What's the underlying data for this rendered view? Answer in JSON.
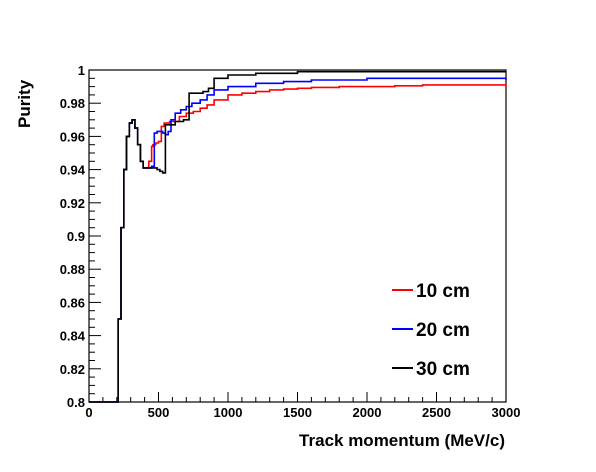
{
  "chart_data": {
    "type": "line",
    "xlabel": "Track momentum (MeV/c)",
    "ylabel": "Purity",
    "xlim": [
      0,
      3000
    ],
    "ylim": [
      0.8,
      1.0
    ],
    "xticks": [
      0,
      500,
      1000,
      1500,
      2000,
      2500,
      3000
    ],
    "xtick_labels": [
      "0",
      "500",
      "1000",
      "1500",
      "2000",
      "2500",
      "3000"
    ],
    "yticks": [
      0.8,
      0.82,
      0.84,
      0.86,
      0.88,
      0.9,
      0.92,
      0.94,
      0.96,
      0.98,
      1.0
    ],
    "ytick_labels": [
      "0.8",
      "0.82",
      "0.84",
      "0.86",
      "0.88",
      "0.9",
      "0.92",
      "0.94",
      "0.96",
      "0.98",
      "1"
    ],
    "grid": false,
    "legend_position": "bottom-right",
    "series": [
      {
        "name": "10 cm",
        "color": "#ff0000",
        "x": [
          0,
          200,
          210,
          230,
          250,
          270,
          290,
          310,
          330,
          350,
          370,
          390,
          410,
          430,
          450,
          460,
          480,
          500,
          520,
          540,
          560,
          580,
          600,
          650,
          700,
          750,
          800,
          850,
          900,
          1000,
          1100,
          1200,
          1300,
          1400,
          1500,
          1600,
          1800,
          2000,
          2200,
          2400,
          2600,
          2800,
          3000
        ],
        "y": [
          0.8,
          0.8,
          0.85,
          0.905,
          0.94,
          0.96,
          0.968,
          0.97,
          0.965,
          0.955,
          0.945,
          0.941,
          0.941,
          0.945,
          0.954,
          0.955,
          0.956,
          0.957,
          0.966,
          0.968,
          0.968,
          0.969,
          0.969,
          0.972,
          0.974,
          0.975,
          0.977,
          0.979,
          0.982,
          0.985,
          0.986,
          0.987,
          0.988,
          0.9885,
          0.989,
          0.9895,
          0.99,
          0.99,
          0.9905,
          0.991,
          0.991,
          0.991,
          0.99
        ]
      },
      {
        "name": "20 cm",
        "color": "#0000ff",
        "x": [
          0,
          200,
          210,
          230,
          250,
          270,
          290,
          310,
          330,
          350,
          370,
          390,
          410,
          430,
          450,
          470,
          490,
          510,
          530,
          550,
          570,
          590,
          620,
          660,
          700,
          740,
          800,
          850,
          900,
          1000,
          1200,
          1400,
          1600,
          1800,
          2000,
          2300,
          2600,
          3000
        ],
        "y": [
          0.8,
          0.8,
          0.85,
          0.905,
          0.94,
          0.96,
          0.968,
          0.97,
          0.965,
          0.955,
          0.945,
          0.941,
          0.941,
          0.941,
          0.942,
          0.962,
          0.963,
          0.963,
          0.962,
          0.961,
          0.963,
          0.97,
          0.974,
          0.976,
          0.978,
          0.98,
          0.982,
          0.985,
          0.988,
          0.99,
          0.992,
          0.993,
          0.994,
          0.994,
          0.995,
          0.995,
          0.995,
          0.994
        ]
      },
      {
        "name": "30 cm",
        "color": "#000000",
        "x": [
          0,
          200,
          210,
          230,
          250,
          270,
          290,
          310,
          330,
          350,
          370,
          390,
          410,
          430,
          450,
          470,
          490,
          510,
          530,
          550,
          580,
          620,
          680,
          720,
          760,
          820,
          860,
          900,
          1000,
          1200,
          1500,
          1800,
          2200,
          2600,
          3000
        ],
        "y": [
          0.8,
          0.8,
          0.85,
          0.905,
          0.94,
          0.96,
          0.968,
          0.97,
          0.965,
          0.955,
          0.945,
          0.941,
          0.941,
          0.941,
          0.941,
          0.941,
          0.94,
          0.939,
          0.938,
          0.967,
          0.967,
          0.969,
          0.97,
          0.986,
          0.986,
          0.987,
          0.989,
          0.995,
          0.997,
          0.998,
          0.999,
          0.999,
          0.999,
          0.999,
          0.999
        ]
      }
    ]
  }
}
